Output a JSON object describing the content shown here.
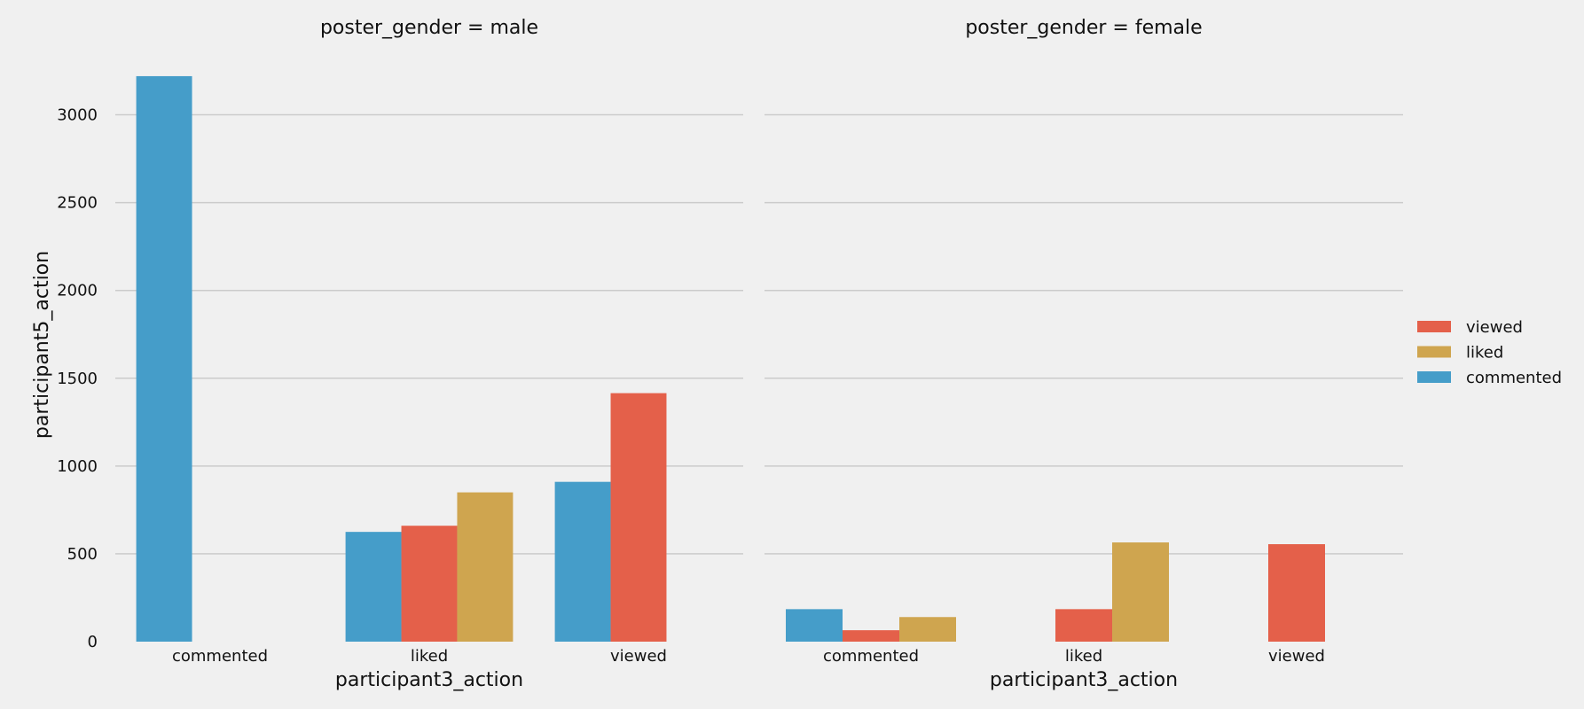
{
  "chart_data": {
    "type": "bar",
    "ylabel": "participant5_action",
    "ylim": [
      0,
      3250
    ],
    "y_ticks": [
      "0",
      "500",
      "1000",
      "1500",
      "2000",
      "2500",
      "3000"
    ],
    "y_tick_values": [
      0,
      500,
      1000,
      1500,
      2000,
      2500,
      3000
    ],
    "grid": true,
    "legend_placement": "right",
    "hue_order": [
      "commented",
      "viewed",
      "liked"
    ],
    "colors": {
      "commented": "#459dc9",
      "viewed": "#e4604a",
      "liked": "#cfa54f"
    },
    "legend": [
      {
        "label": "viewed",
        "key": "viewed"
      },
      {
        "label": "liked",
        "key": "liked"
      },
      {
        "label": "commented",
        "key": "commented"
      }
    ],
    "panels": [
      {
        "title": "poster_gender = male",
        "xlabel": "participant3_action",
        "categories": [
          "commented",
          "liked",
          "viewed"
        ],
        "series": [
          {
            "key": "commented",
            "values": [
              3220,
              625,
              910
            ]
          },
          {
            "key": "viewed",
            "values": [
              null,
              660,
              1415
            ]
          },
          {
            "key": "liked",
            "values": [
              null,
              850,
              null
            ]
          }
        ]
      },
      {
        "title": "poster_gender = female",
        "xlabel": "participant3_action",
        "categories": [
          "commented",
          "liked",
          "viewed"
        ],
        "series": [
          {
            "key": "commented",
            "values": [
              185,
              null,
              null
            ]
          },
          {
            "key": "viewed",
            "values": [
              65,
              185,
              555
            ]
          },
          {
            "key": "liked",
            "values": [
              140,
              565,
              null
            ]
          }
        ]
      }
    ]
  }
}
